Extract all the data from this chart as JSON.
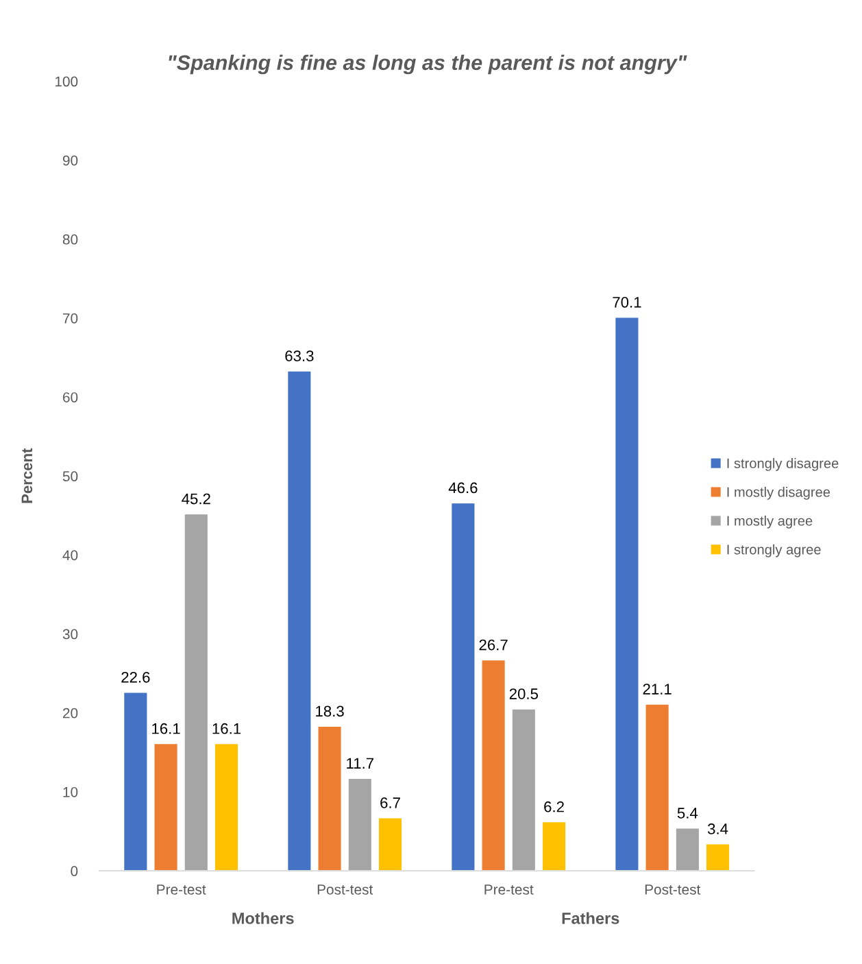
{
  "chart_data": {
    "type": "bar",
    "title": "\"Spanking is fine as long as the parent is not angry\"",
    "ylabel": "Percent",
    "categories": [
      "Pre-test",
      "Post-test",
      "Pre-test",
      "Post-test"
    ],
    "annotations": [
      "Mothers",
      "Fathers"
    ],
    "series": [
      {
        "name": "I strongly disagree",
        "color": "#4472c4",
        "values": [
          22.6,
          63.3,
          46.6,
          70.1
        ]
      },
      {
        "name": "I mostly disagree",
        "color": "#ed7d31",
        "values": [
          16.1,
          18.3,
          26.7,
          21.1
        ]
      },
      {
        "name": "I mostly agree",
        "color": "#a5a5a5",
        "values": [
          45.2,
          11.7,
          20.5,
          5.4
        ]
      },
      {
        "name": "I strongly agree",
        "color": "#ffc000",
        "values": [
          16.1,
          6.7,
          6.2,
          3.4
        ]
      }
    ],
    "ylim": [
      0,
      100
    ],
    "yticks": [
      0,
      10,
      20,
      30,
      40,
      50,
      60,
      70,
      80,
      90,
      100
    ],
    "data_labels": true,
    "legend": "right"
  }
}
